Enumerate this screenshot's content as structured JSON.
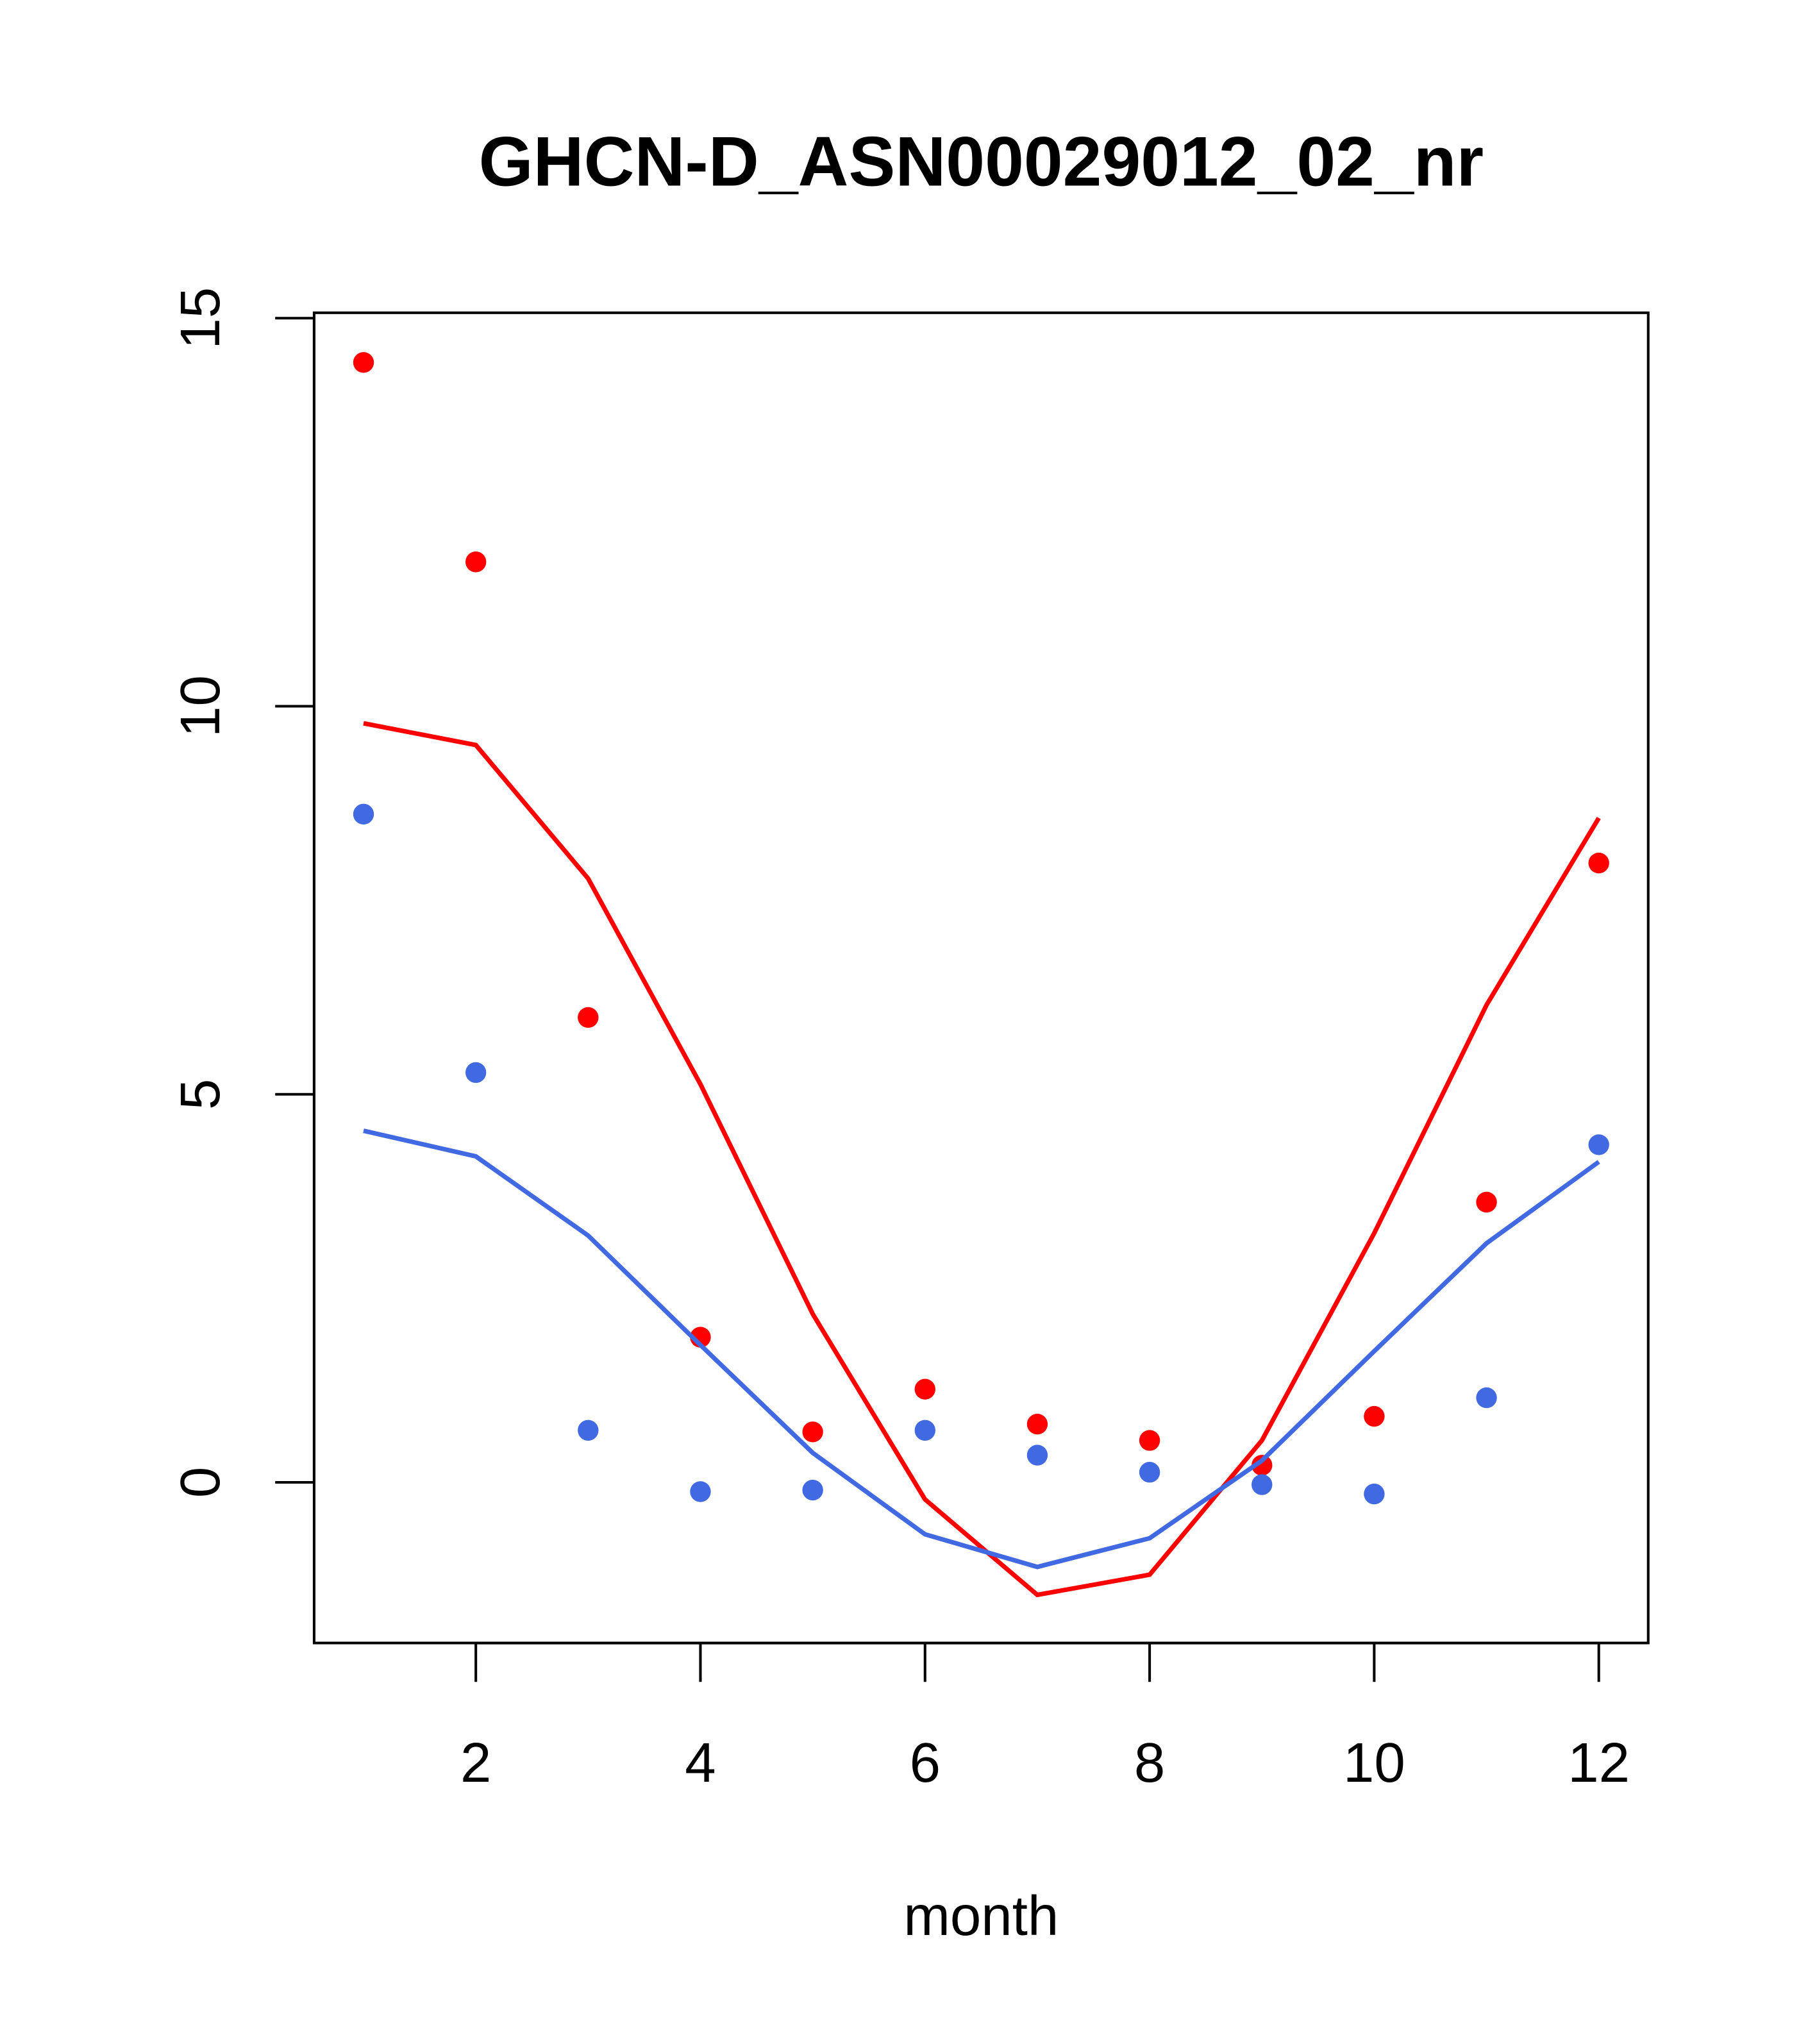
{
  "chart_data": {
    "type": "line",
    "title": "GHCN-D_ASN00029012_02_nr",
    "xlabel": "month",
    "ylabel": "",
    "xlim": [
      0.56,
      12.44
    ],
    "ylim": [
      -2.07,
      15.07
    ],
    "x_ticks": [
      2,
      4,
      6,
      8,
      10,
      12
    ],
    "x_tick_labels": [
      "2",
      "4",
      "6",
      "8",
      "10",
      "12"
    ],
    "y_ticks": [
      0,
      5,
      10,
      15
    ],
    "y_tick_labels": [
      "0",
      "5",
      "10",
      "15"
    ],
    "grid": false,
    "x": [
      1,
      2,
      3,
      4,
      5,
      6,
      7,
      8,
      9,
      10,
      11,
      12
    ],
    "series": [
      {
        "name": "red points",
        "kind": "points",
        "color": "#FF0000",
        "values": [
          14.43,
          11.86,
          5.99,
          1.87,
          0.65,
          1.2,
          0.75,
          0.54,
          0.22,
          0.85,
          3.61,
          7.98
        ]
      },
      {
        "name": "blue points",
        "kind": "points",
        "color": "#4169E1",
        "values": [
          8.61,
          5.28,
          0.67,
          -0.12,
          -0.1,
          0.67,
          0.35,
          0.13,
          -0.03,
          -0.15,
          1.09,
          4.35
        ]
      },
      {
        "name": "red line",
        "kind": "line",
        "color": "#FF0000",
        "values": [
          9.78,
          9.5,
          7.78,
          5.13,
          2.17,
          -0.22,
          -1.45,
          -1.19,
          0.54,
          3.21,
          6.15,
          8.56
        ]
      },
      {
        "name": "blue line",
        "kind": "line",
        "color": "#4169E1",
        "values": [
          4.53,
          4.2,
          3.18,
          1.77,
          0.38,
          -0.67,
          -1.09,
          -0.72,
          0.28,
          1.69,
          3.08,
          4.13
        ]
      }
    ]
  }
}
